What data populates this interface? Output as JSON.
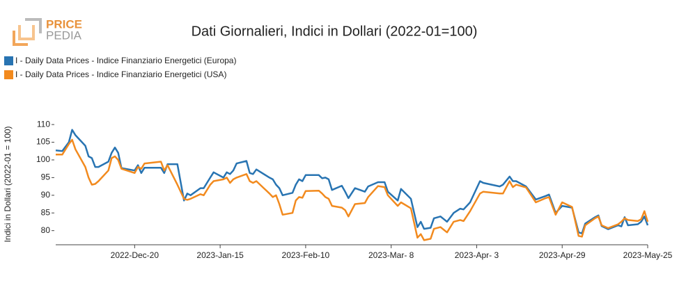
{
  "logo": {
    "line1": "PRICE",
    "line2": "PEDIA"
  },
  "chart_data": {
    "type": "line",
    "title": "Dati Giornalieri, Indici in Dollari (2022-01=100)",
    "y_label": "Indici in Dollari (2022-01 = 100)",
    "x": [
      "2022-11-26",
      "2022-11-28",
      "2022-11-30",
      "2022-12-01",
      "2022-12-02",
      "2022-12-05",
      "2022-12-06",
      "2022-12-07",
      "2022-12-08",
      "2022-12-09",
      "2022-12-12",
      "2022-12-13",
      "2022-12-14",
      "2022-12-15",
      "2022-12-16",
      "2022-12-20",
      "2022-12-21",
      "2022-12-22",
      "2022-12-23",
      "2022-12-28",
      "2022-12-29",
      "2022-12-30",
      "2023-01-02",
      "2023-01-04",
      "2023-01-05",
      "2023-01-06",
      "2023-01-09",
      "2023-01-10",
      "2023-01-12",
      "2023-01-13",
      "2023-01-16",
      "2023-01-17",
      "2023-01-18",
      "2023-01-19",
      "2023-01-20",
      "2023-01-23",
      "2023-01-24",
      "2023-01-25",
      "2023-01-26",
      "2023-01-30",
      "2023-01-31",
      "2023-02-01",
      "2023-02-02",
      "2023-02-03",
      "2023-02-06",
      "2023-02-07",
      "2023-02-08",
      "2023-02-09",
      "2023-02-10",
      "2023-02-14",
      "2023-02-15",
      "2023-02-16",
      "2023-02-17",
      "2023-02-18",
      "2023-02-21",
      "2023-02-22",
      "2023-02-23",
      "2023-02-25",
      "2023-02-28",
      "2023-03-01",
      "2023-03-04",
      "2023-03-06",
      "2023-03-07",
      "2023-03-10",
      "2023-03-11",
      "2023-03-14",
      "2023-03-16",
      "2023-03-17",
      "2023-03-18",
      "2023-03-20",
      "2023-03-21",
      "2023-03-23",
      "2023-03-25",
      "2023-03-27",
      "2023-03-29",
      "2023-03-30",
      "2023-04-01",
      "2023-04-04",
      "2023-04-05",
      "2023-04-10",
      "2023-04-11",
      "2023-04-13",
      "2023-04-14",
      "2023-04-15",
      "2023-04-18",
      "2023-04-21",
      "2023-04-24",
      "2023-04-25",
      "2023-04-27",
      "2023-04-29",
      "2023-05-02",
      "2023-05-04",
      "2023-05-05",
      "2023-05-06",
      "2023-05-09",
      "2023-05-10",
      "2023-05-11",
      "2023-05-13",
      "2023-05-16",
      "2023-05-17",
      "2023-05-18",
      "2023-05-19",
      "2023-05-22",
      "2023-05-23",
      "2023-05-24",
      "2023-05-25"
    ],
    "series": [
      {
        "name": "I - Daily Data Prices - Indice Finanziario Energetici (Europa)",
        "color": "#2874b2",
        "values": [
          102.7,
          102.5,
          105,
          108.5,
          107,
          104,
          101,
          100.5,
          98,
          98,
          99.5,
          102,
          103.5,
          102,
          97.7,
          97,
          98.5,
          96.3,
          97.8,
          97.8,
          96.3,
          98.8,
          98.8,
          88.5,
          90.5,
          90,
          92,
          92,
          95,
          96.5,
          95,
          96.5,
          96,
          97,
          99,
          99.7,
          96.3,
          96,
          97.3,
          95,
          94.5,
          93,
          92,
          90,
          90.7,
          93,
          94.5,
          94,
          95.7,
          95.7,
          94.8,
          95,
          94.5,
          91.5,
          92.7,
          91,
          89.2,
          92,
          91,
          92.5,
          93.7,
          93.7,
          91,
          88.5,
          91.8,
          89,
          81,
          82.5,
          80.5,
          80.8,
          83.5,
          84,
          82.5,
          85,
          86.2,
          86,
          88,
          94,
          93.5,
          92.5,
          93,
          95.3,
          94,
          94,
          92.5,
          88.8,
          89.8,
          90.2,
          85,
          87,
          86.5,
          79.5,
          79.2,
          82,
          83.8,
          84.3,
          81.3,
          80.4,
          81.5,
          81.2,
          83.8,
          81.5,
          81.8,
          82.5,
          84,
          81.5
        ]
      },
      {
        "name": "I - Daily Data Prices - Indice Finanziario Energetici (USA)",
        "color": "#f28a1e",
        "values": [
          101.5,
          101.5,
          104.5,
          105.7,
          103,
          98,
          95,
          93,
          93.2,
          94,
          97,
          100.5,
          101,
          100,
          97.5,
          96.3,
          98,
          97.5,
          99,
          99.5,
          97,
          98.5,
          93,
          89,
          88.7,
          89,
          90.3,
          90,
          93,
          94,
          94.5,
          95,
          93.5,
          94.5,
          95,
          96,
          94,
          93.5,
          94,
          90.5,
          89.5,
          90,
          87.5,
          84.5,
          85,
          88.5,
          89.5,
          89.3,
          91.2,
          91.3,
          90.5,
          89.5,
          89,
          87,
          86.5,
          85.8,
          84,
          87.5,
          87.8,
          89.5,
          92.6,
          92.3,
          90,
          87,
          88,
          86.3,
          78,
          79,
          77.3,
          77.7,
          80.5,
          81,
          79.5,
          82.5,
          83,
          82.7,
          85.5,
          90.5,
          91,
          90.5,
          90.5,
          94,
          92.3,
          93,
          92.2,
          88,
          89.2,
          89.5,
          84.5,
          88,
          86.7,
          78.5,
          78.3,
          81.5,
          83.5,
          84,
          81.5,
          80.7,
          81.8,
          82.5,
          83.5,
          83,
          82.7,
          83.2,
          85.5,
          82.5
        ]
      }
    ],
    "xlim": [
      "2022-11-26",
      "2023-05-25"
    ],
    "xticks": [
      {
        "value": "2022-12-20",
        "label": "2022-Dec-20"
      },
      {
        "value": "2023-01-15",
        "label": "2023-Jan-15"
      },
      {
        "value": "2023-02-10",
        "label": "2023-Feb-10"
      },
      {
        "value": "2023-03-08",
        "label": "2023-Mar- 8"
      },
      {
        "value": "2023-04-03",
        "label": "2023-Apr- 3"
      },
      {
        "value": "2023-04-29",
        "label": "2023-Apr-29"
      },
      {
        "value": "2023-05-25",
        "label": "2023-May-25"
      }
    ],
    "ylim": [
      76,
      111.4
    ],
    "yticks": [
      80,
      85,
      90,
      95,
      100,
      105,
      110
    ],
    "grid": false
  }
}
